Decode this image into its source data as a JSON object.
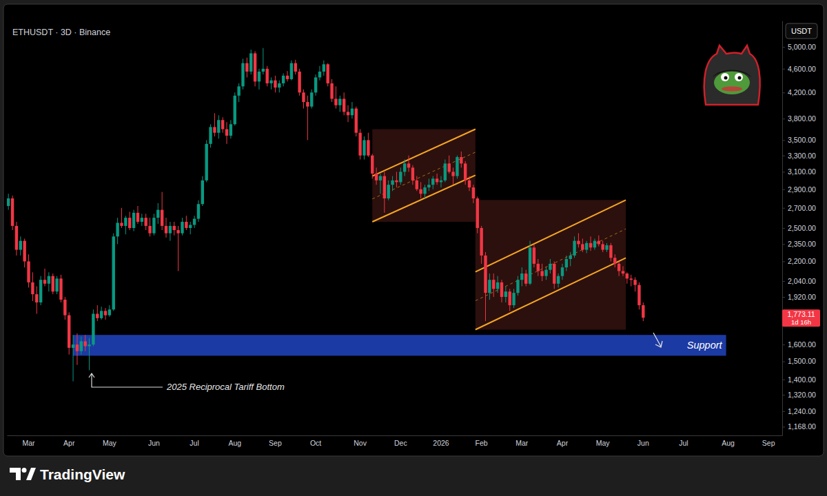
{
  "chart_data": {
    "type": "candlestick",
    "title": "ETHUSDT · 3D · Binance",
    "unit": "USDT",
    "watermark": "TradingView",
    "log": "y",
    "grid": false,
    "ylim": [
      1130,
      5530
    ],
    "yticks": [
      {
        "value": 5000,
        "label": "5,000.00"
      },
      {
        "value": 4600,
        "label": "4,600.00"
      },
      {
        "value": 4200,
        "label": "4,200.00"
      },
      {
        "value": 3800,
        "label": "3,800.00"
      },
      {
        "value": 3500,
        "label": "3,500.00"
      },
      {
        "value": 3300,
        "label": "3,300.00"
      },
      {
        "value": 3100,
        "label": "3,100.00"
      },
      {
        "value": 2900,
        "label": "2,900.00"
      },
      {
        "value": 2700,
        "label": "2,700.00"
      },
      {
        "value": 2500,
        "label": "2,500.00"
      },
      {
        "value": 2350,
        "label": "2,350.00"
      },
      {
        "value": 2200,
        "label": "2,200.00"
      },
      {
        "value": 2040,
        "label": "2,040.00"
      },
      {
        "value": 1920,
        "label": "1,920.00"
      },
      {
        "value": 1600,
        "label": "1,600.00"
      },
      {
        "value": 1500,
        "label": "1,500.00"
      },
      {
        "value": 1400,
        "label": "1,400.00"
      },
      {
        "value": 1320,
        "label": "1,320.00"
      },
      {
        "value": 1240,
        "label": "1,240.00"
      },
      {
        "value": 1168,
        "label": "1,168.00"
      }
    ],
    "categories": [
      null,
      null,
      null,
      null,
      null,
      "Mar",
      null,
      null,
      null,
      null,
      null,
      null,
      null,
      null,
      null,
      "Apr",
      null,
      null,
      null,
      null,
      null,
      null,
      null,
      null,
      null,
      "May",
      null,
      null,
      null,
      null,
      null,
      null,
      null,
      null,
      null,
      null,
      "Jun",
      null,
      null,
      null,
      null,
      null,
      null,
      null,
      null,
      null,
      "Jul",
      null,
      null,
      null,
      null,
      null,
      null,
      null,
      null,
      null,
      "Aug",
      null,
      null,
      null,
      null,
      null,
      null,
      null,
      null,
      null,
      "Sep",
      null,
      null,
      null,
      null,
      null,
      null,
      null,
      null,
      null,
      "Oct",
      null,
      null,
      null,
      null,
      null,
      null,
      null,
      null,
      null,
      null,
      "Nov",
      null,
      null,
      null,
      null,
      null,
      null,
      null,
      null,
      null,
      "Dec",
      null,
      null,
      null,
      null,
      null,
      null,
      null,
      null,
      null,
      "2026",
      null,
      null,
      null,
      null,
      null,
      null,
      null,
      null,
      null,
      "Feb",
      null,
      null,
      null,
      null,
      null,
      null,
      null,
      null,
      null,
      "Mar",
      null,
      null,
      null,
      null,
      null,
      null,
      null,
      null,
      null,
      "Apr",
      null,
      null,
      null,
      null,
      null,
      null,
      null,
      null,
      null,
      "May",
      null,
      null,
      null,
      null,
      null,
      null,
      null,
      null,
      null,
      "Jun",
      null,
      null,
      null,
      null,
      null,
      null,
      null,
      null,
      null,
      "Jul",
      null,
      null,
      null,
      null,
      null,
      null,
      null,
      null,
      null,
      null,
      "Aug",
      null,
      null,
      null,
      null,
      null,
      null,
      null,
      null,
      null,
      "Sep",
      null,
      null,
      null
    ],
    "open": [
      2720,
      2800,
      2520,
      2300,
      2380,
      2200,
      2030,
      1940,
      1880,
      2050,
      2020,
      2080,
      1960,
      2060,
      1900,
      1790,
      1580,
      1600,
      1560,
      1620,
      1590,
      1600,
      1800,
      1770,
      1820,
      1790,
      1830,
      2420,
      2550,
      2520,
      2600,
      2500,
      2650,
      2560,
      2600,
      2520,
      2450,
      2600,
      2680,
      2520,
      2450,
      2520,
      2480,
      2450,
      2560,
      2500,
      2530,
      2590,
      2740,
      3000,
      3450,
      3680,
      3600,
      3780,
      3650,
      3560,
      3720,
      4150,
      4300,
      4700,
      4550,
      4880,
      4380,
      4550,
      4600,
      4350,
      4400,
      4280,
      4350,
      4480,
      4420,
      4700,
      4550,
      4200,
      4050,
      3980,
      4200,
      4450,
      4550,
      4680,
      4350,
      4100,
      4000,
      4100,
      3900,
      3850,
      3950,
      3600,
      3300,
      3500,
      3300,
      3080,
      3000,
      3050,
      2800,
      2950,
      3000,
      2980,
      3100,
      3200,
      3150,
      3000,
      2900,
      2850,
      2920,
      2950,
      3020,
      2980,
      3000,
      3200,
      3100,
      3050,
      3280,
      3200,
      3000,
      2920,
      2800,
      2500,
      2250,
      1950,
      2050,
      1980,
      2030,
      1920,
      1960,
      1860,
      1950,
      2050,
      2100,
      2020,
      2320,
      2180,
      2120,
      2080,
      2130,
      2180,
      2020,
      2080,
      2150,
      2220,
      2250,
      2380,
      2350,
      2300,
      2360,
      2320,
      2380,
      2350,
      2300,
      2340,
      2230,
      2180,
      2120,
      2100,
      2060,
      2050,
      2010,
      1860,
      null,
      null,
      null,
      null,
      null,
      null,
      null,
      null,
      null,
      null,
      null,
      null,
      null,
      null,
      null,
      null,
      null,
      null,
      null,
      null,
      null,
      null,
      null,
      null,
      null,
      null,
      null,
      null,
      null,
      null,
      null,
      null,
      null,
      null
    ],
    "high": [
      2850,
      2830,
      2560,
      2420,
      2400,
      2260,
      2110,
      2000,
      2080,
      2140,
      2110,
      2100,
      2080,
      2090,
      1920,
      1810,
      1660,
      1670,
      1650,
      1660,
      1640,
      1830,
      1860,
      1850,
      1840,
      1860,
      2450,
      2600,
      2700,
      2620,
      2660,
      2680,
      2720,
      2640,
      2640,
      2600,
      2640,
      2750,
      2870,
      2600,
      2560,
      2560,
      2520,
      2600,
      2620,
      2560,
      2620,
      2780,
      3050,
      3500,
      3720,
      3880,
      3850,
      3820,
      3750,
      3780,
      4200,
      4350,
      4780,
      4800,
      4950,
      4920,
      4600,
      4980,
      4650,
      4450,
      4480,
      4400,
      4520,
      4560,
      4750,
      4760,
      4600,
      4250,
      4150,
      4250,
      4500,
      4650,
      4750,
      4700,
      4420,
      4300,
      4150,
      4200,
      4000,
      4050,
      3980,
      3650,
      3550,
      3600,
      3320,
      3150,
      3080,
      3100,
      3000,
      3050,
      3100,
      3150,
      3250,
      3300,
      3180,
      3050,
      2980,
      2950,
      3020,
      3050,
      3080,
      3050,
      3250,
      3300,
      3150,
      3300,
      3350,
      3230,
      3050,
      2950,
      2820,
      2520,
      2280,
      2100,
      2100,
      2080,
      2050,
      2000,
      1980,
      1980,
      2080,
      2150,
      2130,
      2380,
      2350,
      2220,
      2180,
      2150,
      2220,
      2200,
      2100,
      2180,
      2250,
      2280,
      2420,
      2450,
      2400,
      2380,
      2420,
      2400,
      2430,
      2380,
      2360,
      2360,
      2260,
      2200,
      2160,
      2110,
      2090,
      2070,
      2030,
      1880,
      null,
      null,
      null,
      null,
      null,
      null,
      null,
      null,
      null,
      null,
      null,
      null,
      null,
      null,
      null,
      null,
      null,
      null,
      null,
      null,
      null,
      null,
      null,
      null,
      null,
      null,
      null,
      null,
      null,
      null,
      null,
      null,
      null,
      null
    ],
    "low": [
      2680,
      2480,
      2250,
      2250,
      2150,
      1990,
      1890,
      1800,
      1860,
      2000,
      1960,
      1940,
      1940,
      1880,
      1760,
      1540,
      1390,
      1480,
      1540,
      1560,
      1450,
      1590,
      1750,
      1760,
      1760,
      1780,
      1820,
      2350,
      2500,
      2440,
      2480,
      2470,
      2540,
      2520,
      2480,
      2420,
      2430,
      2540,
      2480,
      2410,
      2380,
      2430,
      2120,
      2430,
      2480,
      2440,
      2500,
      2560,
      2720,
      2980,
      3400,
      3550,
      3520,
      3600,
      3450,
      3520,
      3700,
      4050,
      4250,
      4450,
      4500,
      4300,
      4250,
      4500,
      4300,
      4250,
      4200,
      4200,
      4300,
      4380,
      4400,
      4500,
      4150,
      3950,
      3500,
      3950,
      4150,
      4400,
      4480,
      4300,
      4050,
      3950,
      3900,
      3850,
      3750,
      3800,
      3550,
      3250,
      3250,
      3280,
      3020,
      2950,
      2850,
      2650,
      2780,
      2880,
      2920,
      2950,
      3050,
      3100,
      2950,
      2880,
      2800,
      2800,
      2880,
      2900,
      2950,
      2920,
      2980,
      3080,
      2950,
      3020,
      3150,
      2950,
      2880,
      2750,
      2450,
      2180,
      1750,
      1900,
      1920,
      1950,
      1880,
      1880,
      1820,
      1840,
      1930,
      2000,
      2000,
      2010,
      2150,
      2080,
      2040,
      2050,
      2100,
      1980,
      1990,
      2050,
      2120,
      2160,
      2230,
      2320,
      2280,
      2270,
      2290,
      2300,
      2330,
      2280,
      2280,
      2200,
      2150,
      2080,
      2080,
      2020,
      2000,
      1960,
      1830,
      1750,
      null,
      null,
      null,
      null,
      null,
      null,
      null,
      null,
      null,
      null,
      null,
      null,
      null,
      null,
      null,
      null,
      null,
      null,
      null,
      null,
      null,
      null,
      null,
      null,
      null,
      null,
      null,
      null,
      null,
      null,
      null,
      null,
      null,
      null
    ],
    "close": [
      2800,
      2520,
      2300,
      2380,
      2200,
      2030,
      1940,
      1880,
      2050,
      2020,
      2080,
      1960,
      2060,
      1900,
      1790,
      1580,
      1600,
      1560,
      1620,
      1590,
      1600,
      1800,
      1770,
      1820,
      1790,
      1830,
      2420,
      2550,
      2520,
      2600,
      2500,
      2650,
      2560,
      2600,
      2520,
      2450,
      2600,
      2680,
      2520,
      2450,
      2520,
      2480,
      2450,
      2560,
      2500,
      2530,
      2590,
      2740,
      3000,
      3450,
      3680,
      3600,
      3780,
      3650,
      3560,
      3720,
      4150,
      4300,
      4700,
      4550,
      4880,
      4380,
      4550,
      4600,
      4350,
      4400,
      4280,
      4350,
      4480,
      4420,
      4700,
      4550,
      4200,
      4050,
      3980,
      4200,
      4450,
      4550,
      4680,
      4350,
      4100,
      4000,
      4100,
      3900,
      3850,
      3950,
      3600,
      3300,
      3500,
      3300,
      3080,
      3000,
      3050,
      2800,
      2950,
      3000,
      2980,
      3100,
      3200,
      3150,
      3000,
      2900,
      2850,
      2920,
      2950,
      3020,
      2980,
      3000,
      3200,
      3100,
      3050,
      3280,
      3200,
      3000,
      2920,
      2800,
      2500,
      2250,
      1950,
      2050,
      1980,
      2030,
      1920,
      1960,
      1860,
      1950,
      2050,
      2100,
      2020,
      2320,
      2180,
      2120,
      2080,
      2130,
      2180,
      2020,
      2080,
      2150,
      2220,
      2250,
      2380,
      2350,
      2300,
      2360,
      2320,
      2380,
      2350,
      2300,
      2340,
      2230,
      2180,
      2120,
      2100,
      2060,
      2050,
      2010,
      1860,
      1773.11,
      null,
      null,
      null,
      null,
      null,
      null,
      null,
      null,
      null,
      null,
      null,
      null,
      null,
      null,
      null,
      null,
      null,
      null,
      null,
      null,
      null,
      null,
      null,
      null,
      null,
      null,
      null,
      null,
      null,
      null,
      null,
      null,
      null,
      null
    ],
    "channels": [
      {
        "x": [
          90,
          115.5
        ],
        "upper": [
          3050,
          3650
        ],
        "lower": [
          2560,
          3060
        ]
      },
      {
        "x": [
          115.5,
          152.7
        ],
        "upper": [
          2114,
          2783
        ],
        "lower": [
          1694,
          2230
        ]
      }
    ],
    "support": {
      "label": "Support",
      "range": [
        1533,
        1660
      ],
      "x": [
        16,
        177.5
      ]
    },
    "annotation": "2025 Reciprocal Tariff Bottom",
    "last_price": {
      "value": 1773.11,
      "label": "1,773.11",
      "countdown": "1d 16h"
    }
  }
}
